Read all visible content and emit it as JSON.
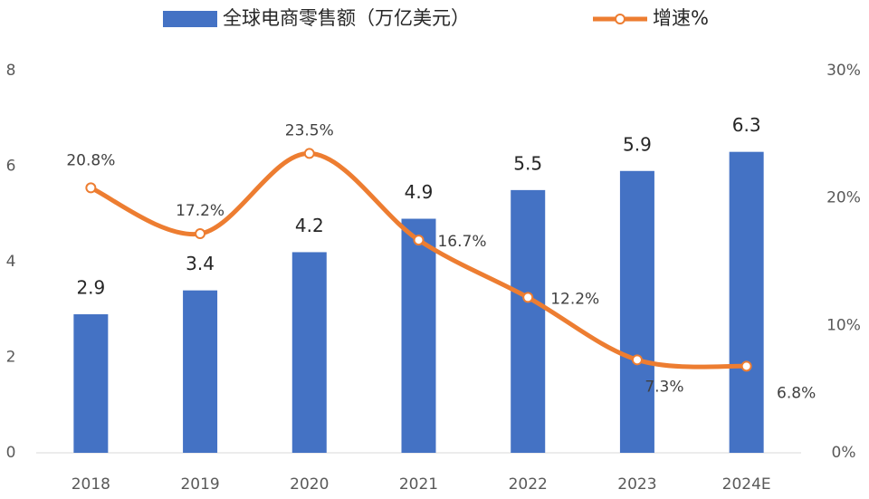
{
  "chart_data": {
    "type": "combo",
    "categories": [
      "2018",
      "2019",
      "2020",
      "2021",
      "2022",
      "2023",
      "2024E"
    ],
    "series": [
      {
        "name": "全球电商零售额（万亿美元）",
        "type": "bar",
        "color": "#4472c4",
        "values": [
          2.9,
          3.4,
          4.2,
          4.9,
          5.5,
          5.9,
          6.3
        ]
      },
      {
        "name": "增速%",
        "type": "line",
        "axis": "y2",
        "color": "#ed7d31",
        "values": [
          20.8,
          17.2,
          23.5,
          16.7,
          12.2,
          7.3,
          6.8
        ],
        "value_labels": [
          "20.8%",
          "17.2%",
          "23.5%",
          "16.7%",
          "12.2%",
          "7.3%",
          "6.8%"
        ]
      }
    ],
    "ylim": [
      0,
      8
    ],
    "yticks": [
      0,
      2,
      4,
      6,
      8
    ],
    "y2lim": [
      0,
      30
    ],
    "y2ticks": [
      {
        "value": 0,
        "label": "0%"
      },
      {
        "value": 10,
        "label": "10%"
      },
      {
        "value": 20,
        "label": "20%"
      },
      {
        "value": 30,
        "label": "30%"
      }
    ],
    "legend": "top"
  }
}
